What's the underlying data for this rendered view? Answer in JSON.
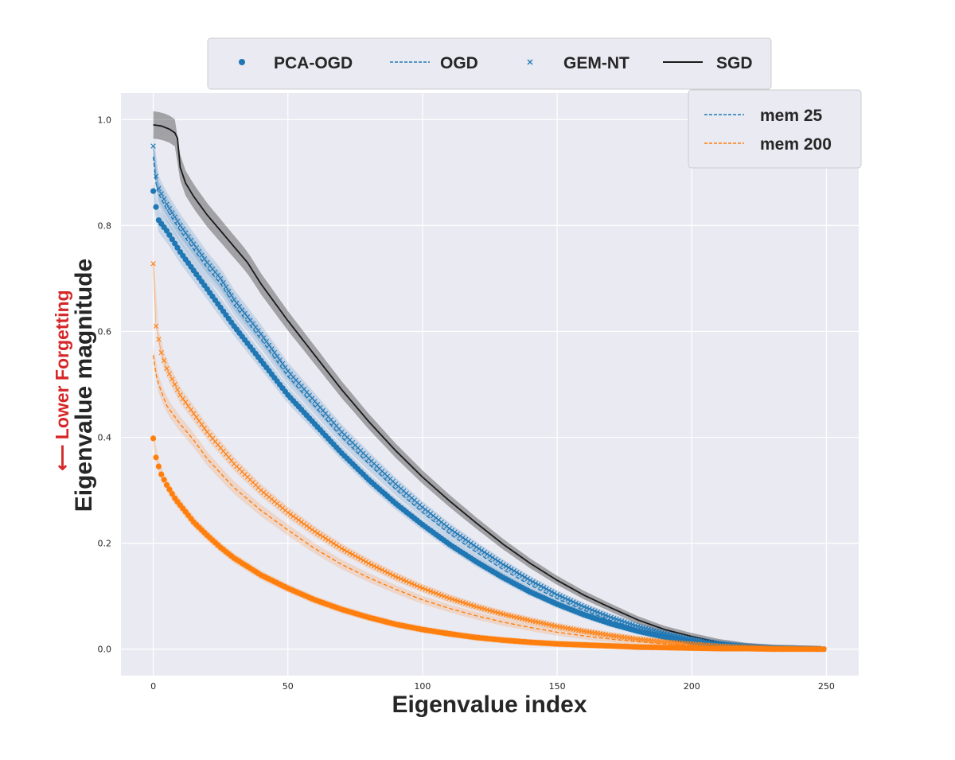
{
  "chart_data": {
    "type": "line",
    "title": "",
    "xlabel": "Eigenvalue index",
    "ylabel": "Eigenvalue magnitude",
    "annotation": "⟵ Lower Forgetting",
    "xlim": [
      -12,
      262
    ],
    "ylim": [
      -0.05,
      1.05
    ],
    "xticks": [
      0,
      50,
      100,
      150,
      200,
      250
    ],
    "yticks": [
      0.0,
      0.2,
      0.4,
      0.6,
      0.8,
      1.0
    ],
    "grid": true,
    "legend_methods": {
      "placement": "top-center",
      "entries": [
        {
          "label": "PCA-OGD",
          "marker": "dot"
        },
        {
          "label": "OGD",
          "marker": "dashed"
        },
        {
          "label": "GEM-NT",
          "marker": "x"
        },
        {
          "label": "SGD",
          "marker": "solid"
        }
      ]
    },
    "legend_memory": {
      "placement": "top-right",
      "entries": [
        {
          "label": "mem 25",
          "color": "#1f77b4"
        },
        {
          "label": "mem 200",
          "color": "#ff7f0e"
        }
      ]
    },
    "colors": {
      "mem25": "#1f77b4",
      "mem200": "#ff7f0e",
      "sgd": "#1a1a1a",
      "plot_bg": "#eaeaf2",
      "grid": "#ffffff",
      "annotation": "#d62728"
    },
    "series": [
      {
        "method": "SGD",
        "memory": "",
        "style": "solid",
        "x": [
          0,
          3,
          6,
          8,
          9,
          10,
          12,
          15,
          20,
          25,
          30,
          35,
          40,
          50,
          60,
          70,
          80,
          90,
          100,
          110,
          120,
          130,
          140,
          150,
          160,
          170,
          180,
          190,
          200,
          210,
          220,
          230,
          240,
          249
        ],
        "y": [
          0.99,
          0.988,
          0.982,
          0.975,
          0.965,
          0.91,
          0.88,
          0.855,
          0.82,
          0.79,
          0.76,
          0.73,
          0.69,
          0.62,
          0.555,
          0.49,
          0.43,
          0.375,
          0.325,
          0.28,
          0.238,
          0.198,
          0.162,
          0.13,
          0.102,
          0.078,
          0.055,
          0.037,
          0.024,
          0.013,
          0.006,
          0.002,
          0.001,
          0.0
        ]
      },
      {
        "method": "PCA-OGD",
        "memory": "mem 25",
        "style": "dot",
        "x": [
          0,
          1,
          2,
          5,
          10,
          15,
          20,
          25,
          30,
          40,
          50,
          60,
          70,
          80,
          90,
          100,
          110,
          120,
          130,
          140,
          150,
          160,
          170,
          180,
          190,
          200,
          210,
          220,
          230,
          240,
          249
        ],
        "y": [
          0.865,
          0.835,
          0.81,
          0.79,
          0.75,
          0.715,
          0.68,
          0.645,
          0.61,
          0.545,
          0.48,
          0.425,
          0.37,
          0.32,
          0.275,
          0.235,
          0.198,
          0.165,
          0.135,
          0.108,
          0.085,
          0.065,
          0.048,
          0.034,
          0.023,
          0.014,
          0.008,
          0.004,
          0.002,
          0.001,
          0.0
        ]
      },
      {
        "method": "OGD",
        "memory": "mem 25",
        "style": "dashed",
        "x": [
          0,
          1,
          2,
          5,
          10,
          15,
          20,
          25,
          30,
          40,
          50,
          60,
          70,
          80,
          90,
          100,
          110,
          120,
          130,
          140,
          150,
          160,
          170,
          180,
          190,
          200,
          210,
          220,
          230,
          240,
          249
        ],
        "y": [
          0.93,
          0.88,
          0.86,
          0.83,
          0.79,
          0.755,
          0.72,
          0.69,
          0.65,
          0.585,
          0.515,
          0.458,
          0.4,
          0.35,
          0.302,
          0.258,
          0.218,
          0.183,
          0.15,
          0.121,
          0.095,
          0.073,
          0.054,
          0.038,
          0.026,
          0.016,
          0.009,
          0.005,
          0.002,
          0.001,
          0.0
        ]
      },
      {
        "method": "GEM-NT",
        "memory": "mem 25",
        "style": "x",
        "x": [
          0,
          1,
          2,
          5,
          10,
          15,
          20,
          25,
          30,
          40,
          50,
          60,
          70,
          80,
          90,
          100,
          110,
          120,
          130,
          140,
          150,
          160,
          170,
          180,
          190,
          200,
          210,
          220,
          230,
          240,
          249
        ],
        "y": [
          0.95,
          0.893,
          0.87,
          0.84,
          0.8,
          0.765,
          0.73,
          0.7,
          0.66,
          0.595,
          0.525,
          0.468,
          0.41,
          0.36,
          0.312,
          0.268,
          0.228,
          0.193,
          0.16,
          0.13,
          0.103,
          0.08,
          0.06,
          0.043,
          0.03,
          0.019,
          0.011,
          0.006,
          0.003,
          0.001,
          0.0
        ]
      },
      {
        "method": "PCA-OGD",
        "memory": "mem 200",
        "style": "dot",
        "x": [
          0,
          1,
          2,
          3,
          5,
          8,
          10,
          15,
          20,
          25,
          30,
          40,
          50,
          60,
          70,
          80,
          90,
          100,
          110,
          120,
          130,
          140,
          150,
          160,
          170,
          180,
          190,
          200,
          210,
          220,
          230,
          240,
          249
        ],
        "y": [
          0.398,
          0.362,
          0.345,
          0.33,
          0.31,
          0.285,
          0.272,
          0.24,
          0.215,
          0.192,
          0.172,
          0.14,
          0.115,
          0.093,
          0.075,
          0.06,
          0.047,
          0.037,
          0.029,
          0.022,
          0.017,
          0.013,
          0.01,
          0.008,
          0.006,
          0.004,
          0.003,
          0.002,
          0.001,
          0.001,
          0.0,
          0.0,
          0.0
        ]
      },
      {
        "method": "OGD",
        "memory": "mem 200",
        "style": "dashed",
        "x": [
          0,
          1,
          2,
          5,
          10,
          15,
          20,
          25,
          30,
          40,
          50,
          60,
          70,
          80,
          90,
          100,
          110,
          120,
          130,
          140,
          150,
          160,
          170,
          180,
          190,
          200,
          210,
          220,
          230,
          240,
          249
        ],
        "y": [
          0.555,
          0.52,
          0.5,
          0.46,
          0.425,
          0.395,
          0.36,
          0.332,
          0.305,
          0.262,
          0.225,
          0.19,
          0.16,
          0.135,
          0.113,
          0.093,
          0.077,
          0.063,
          0.051,
          0.041,
          0.032,
          0.025,
          0.019,
          0.014,
          0.01,
          0.007,
          0.005,
          0.003,
          0.002,
          0.001,
          0.0
        ]
      },
      {
        "method": "GEM-NT",
        "memory": "mem 200",
        "style": "x",
        "x": [
          0,
          1,
          2,
          3,
          5,
          10,
          15,
          20,
          25,
          30,
          40,
          50,
          60,
          70,
          80,
          90,
          100,
          110,
          120,
          130,
          140,
          150,
          160,
          170,
          180,
          190,
          200,
          210,
          220,
          230,
          240,
          249
        ],
        "y": [
          0.728,
          0.61,
          0.585,
          0.56,
          0.53,
          0.48,
          0.445,
          0.41,
          0.38,
          0.35,
          0.3,
          0.258,
          0.222,
          0.19,
          0.162,
          0.137,
          0.115,
          0.096,
          0.08,
          0.066,
          0.054,
          0.043,
          0.034,
          0.026,
          0.019,
          0.014,
          0.01,
          0.006,
          0.004,
          0.002,
          0.001,
          0.0
        ]
      }
    ]
  }
}
